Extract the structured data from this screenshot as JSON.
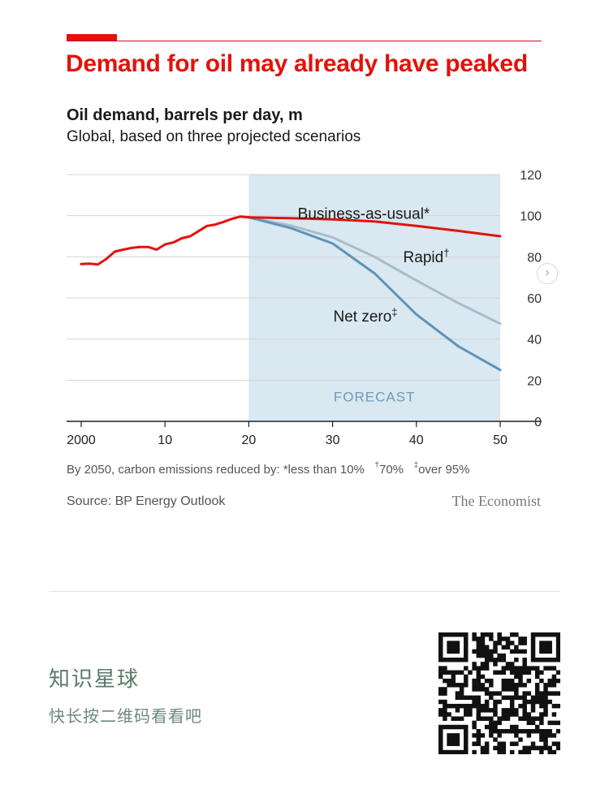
{
  "header": {
    "title": "Demand for oil may already have peaked",
    "subtitle": "Oil demand, barrels per day, m",
    "subtitle2": "Global, based on three projected scenarios"
  },
  "chart_data": {
    "type": "line",
    "title": "Oil demand, barrels per day, m",
    "xlabel": "",
    "ylabel": "",
    "xlim": [
      2000,
      2050
    ],
    "ylim": [
      0,
      120
    ],
    "x_ticks": [
      {
        "value": 2000,
        "label": "2000"
      },
      {
        "value": 2010,
        "label": "10"
      },
      {
        "value": 2020,
        "label": "20"
      },
      {
        "value": 2030,
        "label": "30"
      },
      {
        "value": 2040,
        "label": "40"
      },
      {
        "value": 2050,
        "label": "50"
      }
    ],
    "y_ticks": [
      0,
      20,
      40,
      60,
      80,
      100,
      120
    ],
    "forecast_region": {
      "from": 2020,
      "to": 2050,
      "label": "FORECAST"
    },
    "history": {
      "name": "Historical",
      "color": "#e3120b",
      "x": [
        2000,
        2001,
        2002,
        2003,
        2004,
        2005,
        2006,
        2007,
        2008,
        2009,
        2010,
        2011,
        2012,
        2013,
        2014,
        2015,
        2016,
        2017,
        2018,
        2019,
        2020
      ],
      "y": [
        76.5,
        76.7,
        76.3,
        79,
        82.5,
        83.5,
        84.3,
        84.8,
        84.8,
        83.5,
        86,
        87,
        89,
        90,
        92.5,
        95,
        95.7,
        97,
        98.5,
        99.6,
        99.2
      ]
    },
    "series": [
      {
        "name": "Business-as-usual",
        "label": "Business-as-usual",
        "mark": "*",
        "color": "#e3120b",
        "x": [
          2020,
          2025,
          2030,
          2035,
          2040,
          2045,
          2050
        ],
        "y": [
          99.2,
          98.8,
          98.2,
          97.2,
          95,
          92.6,
          90
        ]
      },
      {
        "name": "Rapid",
        "label": "Rapid",
        "mark": "†",
        "color": "#a9bccb",
        "x": [
          2020,
          2025,
          2030,
          2035,
          2040,
          2045,
          2050
        ],
        "y": [
          99.2,
          95.2,
          89.5,
          80,
          68.5,
          57.5,
          47.5
        ]
      },
      {
        "name": "Net zero",
        "label": "Net zero",
        "mark": "‡",
        "color": "#5f93b7",
        "x": [
          2020,
          2025,
          2030,
          2035,
          2040,
          2045,
          2050
        ],
        "y": [
          99.2,
          94,
          86.5,
          72,
          52,
          36.5,
          25
        ]
      }
    ]
  },
  "footnote": {
    "lead": "By 2050, carbon emissions reduced by:",
    "bau_mark": "*",
    "bau_text": "less than 10%",
    "rapid_mark": "†",
    "rapid_text": "70%",
    "netzero_mark": "‡",
    "netzero_text": "over 95%"
  },
  "source": "Source: BP Energy Outlook",
  "brand": "The Economist",
  "nav": {
    "next_glyph": "›"
  },
  "promo": {
    "title": "知识星球",
    "subtitle": "快长按二维码看看吧"
  }
}
